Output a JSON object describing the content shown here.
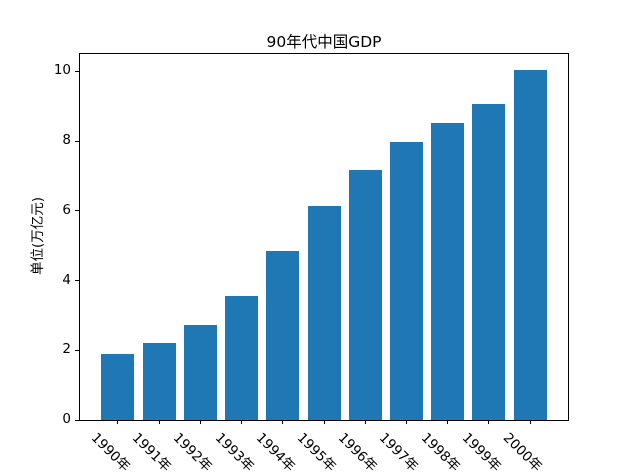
{
  "chart_data": {
    "type": "bar",
    "title": "90年代中国GDP",
    "xlabel": "",
    "ylabel": "单位(万亿元)",
    "categories": [
      "1990年",
      "1991年",
      "1992年",
      "1993年",
      "1994年",
      "1995年",
      "1996年",
      "1997年",
      "1998年",
      "1999年",
      "2000年"
    ],
    "values": [
      1.89,
      2.2,
      2.72,
      3.57,
      4.86,
      6.13,
      7.18,
      7.97,
      8.52,
      9.06,
      10.03
    ],
    "yticks": [
      0,
      2,
      4,
      6,
      8,
      10
    ],
    "ylim": [
      0,
      10.53
    ],
    "bar_color": "#1f77b4",
    "grid": false,
    "legend": null,
    "xticklabel_rotation": -45
  }
}
